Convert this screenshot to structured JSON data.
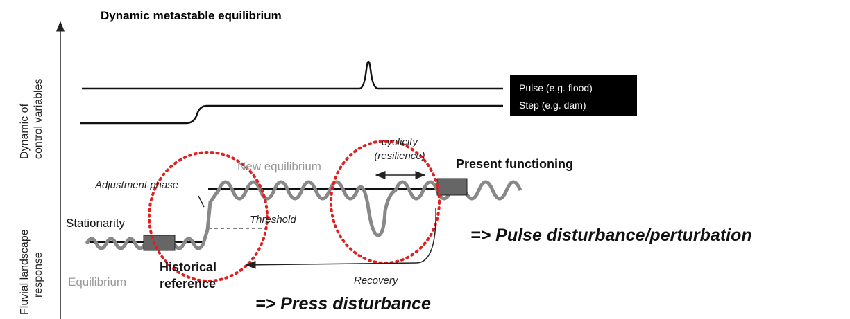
{
  "title": "Dynamic metastable equilibrium",
  "axis_labels": {
    "control": [
      "Dynamic of",
      "control variables"
    ],
    "response": [
      "Fluvial landscape",
      "response"
    ]
  },
  "legend": [
    "Pulse (e.g. flood)",
    "Step (e.g. dam)"
  ],
  "labels": {
    "cyclicity": [
      "cyclicity",
      "(resilience)"
    ],
    "new_equilibrium": "New equilibrium",
    "present_functioning": "Present functioning",
    "adjustment_phase": "Adjustment phase",
    "threshold": "Threshold",
    "stationarity": "Stationarity",
    "historical_reference": [
      "Historical",
      "reference"
    ],
    "equilibrium": "Equilibrium",
    "recovery": "Recovery"
  },
  "disturbances": {
    "pulse": "=> Pulse disturbance/perturbation",
    "press": "=> Press disturbance"
  }
}
